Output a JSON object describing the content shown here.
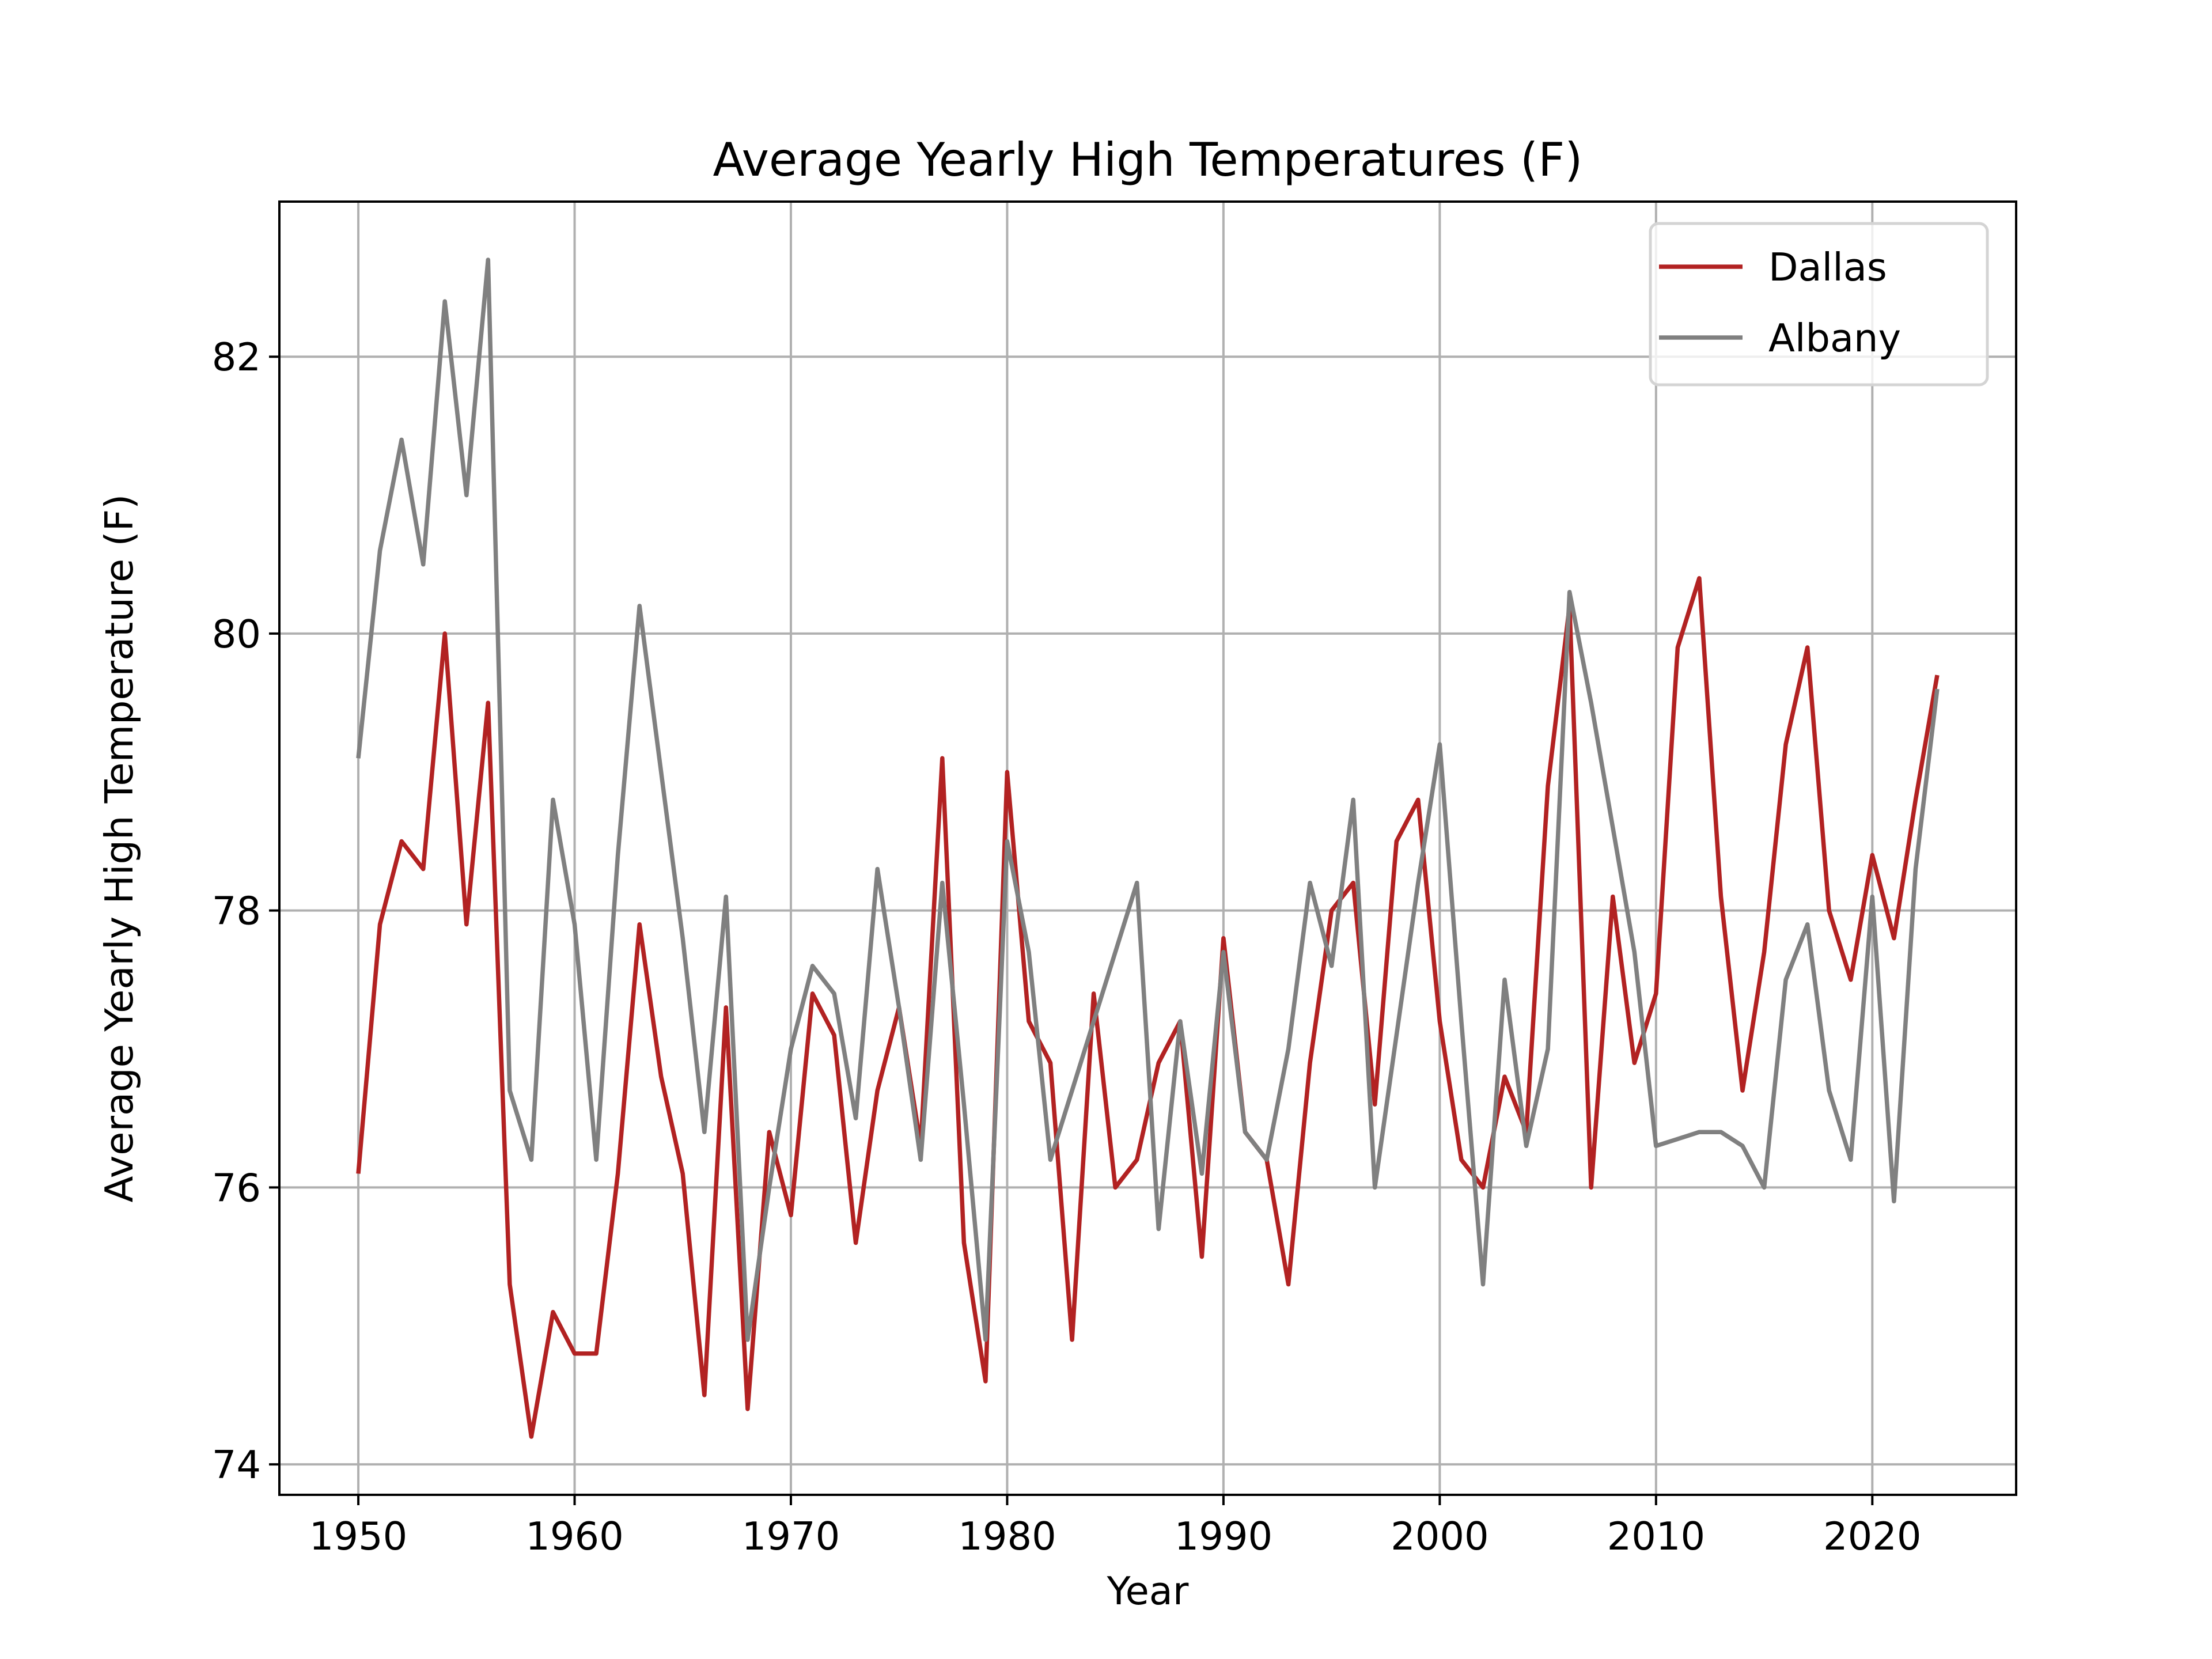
{
  "chart_data": {
    "type": "line",
    "title": "Average Yearly High Temperatures (F)",
    "xlabel": "Year",
    "ylabel": "Average Yearly High Temperature (F)",
    "xlim": [
      1946.35,
      2026.65
    ],
    "ylim": [
      73.78,
      83.12
    ],
    "xticks": [
      1950,
      1960,
      1970,
      1980,
      1990,
      2000,
      2010,
      2020
    ],
    "yticks": [
      74,
      76,
      78,
      80,
      82
    ],
    "grid": true,
    "legend_position": "top-right",
    "x": [
      1950,
      1951,
      1952,
      1953,
      1954,
      1955,
      1956,
      1957,
      1958,
      1959,
      1960,
      1961,
      1962,
      1963,
      1964,
      1965,
      1966,
      1967,
      1968,
      1969,
      1970,
      1971,
      1972,
      1973,
      1974,
      1975,
      1976,
      1977,
      1978,
      1979,
      1980,
      1981,
      1982,
      1983,
      1984,
      1985,
      1986,
      1987,
      1988,
      1989,
      1990,
      1991,
      1992,
      1993,
      1994,
      1995,
      1996,
      1997,
      1998,
      1999,
      2000,
      2001,
      2002,
      2003,
      2004,
      2005,
      2006,
      2007,
      2008,
      2009,
      2010,
      2011,
      2012,
      2013,
      2014,
      2015,
      2016,
      2017,
      2018,
      2019,
      2020,
      2021,
      2022,
      2023
    ],
    "series": [
      {
        "name": "Dallas",
        "color": "#b22222",
        "values": [
          76.1,
          77.9,
          78.5,
          78.3,
          80.0,
          77.9,
          79.5,
          75.3,
          74.2,
          75.1,
          74.8,
          74.8,
          76.1,
          77.9,
          76.8,
          76.1,
          74.5,
          77.3,
          74.4,
          76.4,
          75.8,
          77.4,
          77.1,
          75.6,
          76.7,
          77.3,
          76.3,
          79.1,
          75.6,
          74.6,
          79.0,
          77.2,
          76.9,
          74.9,
          77.4,
          76.0,
          76.2,
          76.9,
          77.2,
          75.5,
          77.8,
          76.4,
          76.2,
          75.3,
          76.9,
          78.0,
          78.2,
          76.6,
          78.5,
          78.8,
          77.2,
          76.2,
          76.0,
          76.8,
          76.4,
          78.9,
          80.2,
          76.0,
          78.1,
          76.9,
          77.4,
          79.9,
          80.4,
          78.1,
          76.7,
          77.7,
          79.2,
          79.9,
          78.0,
          77.5,
          78.4,
          77.8,
          78.8,
          79.7
        ]
      },
      {
        "name": "Albany",
        "color": "#808080",
        "values": [
          79.1,
          80.6,
          81.4,
          80.5,
          82.4,
          81.0,
          82.7,
          76.7,
          76.2,
          78.8,
          77.9,
          76.2,
          78.4,
          80.2,
          79.0,
          77.8,
          76.4,
          78.1,
          74.9,
          76.0,
          77.0,
          77.6,
          77.4,
          76.5,
          78.3,
          77.3,
          76.2,
          78.2,
          76.6,
          74.9,
          78.5,
          77.7,
          76.2,
          76.7,
          77.2,
          77.7,
          78.2,
          75.7,
          77.2,
          76.1,
          77.7,
          76.4,
          76.2,
          77.0,
          78.2,
          77.6,
          78.8,
          76.0,
          77.1,
          78.2,
          79.2,
          77.2,
          75.3,
          77.5,
          76.3,
          77.0,
          80.3,
          79.5,
          78.6,
          77.7,
          76.3,
          76.35,
          76.4,
          76.4,
          76.3,
          76.0,
          77.5,
          77.9,
          76.7,
          76.2,
          78.1,
          75.9,
          78.3,
          79.6
        ]
      }
    ]
  }
}
